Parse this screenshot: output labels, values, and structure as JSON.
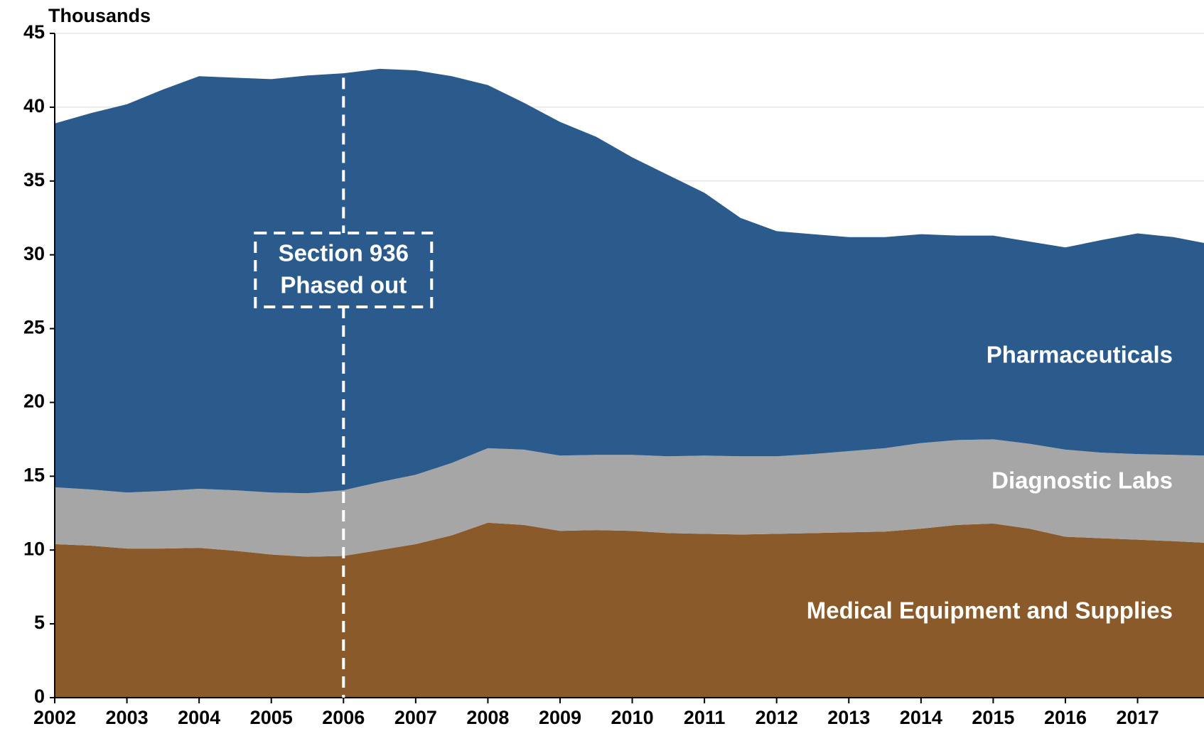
{
  "chart_data": {
    "type": "stacked-area",
    "y_axis_label": "Thousands",
    "x": [
      2002,
      2002.5,
      2003,
      2003.5,
      2004,
      2004.5,
      2005,
      2005.5,
      2006,
      2006.5,
      2007,
      2007.5,
      2008,
      2008.5,
      2009,
      2009.5,
      2010,
      2010.5,
      2011,
      2011.5,
      2012,
      2012.5,
      2013,
      2013.5,
      2014,
      2014.5,
      2015,
      2015.5,
      2016,
      2016.5,
      2017,
      2017.5,
      2017.92
    ],
    "series": [
      {
        "name": "Medical Equipment and Supplies",
        "color": "#8b5a2b",
        "values": [
          10.4,
          10.3,
          10.1,
          10.1,
          10.15,
          9.95,
          9.7,
          9.55,
          9.6,
          10.0,
          10.4,
          11.0,
          11.85,
          11.7,
          11.3,
          11.35,
          11.3,
          11.15,
          11.1,
          11.05,
          11.1,
          11.15,
          11.2,
          11.25,
          11.45,
          11.7,
          11.8,
          11.45,
          10.9,
          10.8,
          10.7,
          10.6,
          10.5
        ]
      },
      {
        "name": "Diagnostic Labs",
        "color": "#a6a6a6",
        "values": [
          3.85,
          3.8,
          3.8,
          3.9,
          4.0,
          4.1,
          4.2,
          4.3,
          4.45,
          4.6,
          4.7,
          4.9,
          5.05,
          5.1,
          5.1,
          5.1,
          5.15,
          5.2,
          5.3,
          5.3,
          5.25,
          5.35,
          5.5,
          5.65,
          5.8,
          5.75,
          5.7,
          5.75,
          5.9,
          5.8,
          5.8,
          5.85,
          5.9
        ]
      },
      {
        "name": "Pharmaceuticals",
        "color": "#2b5b8c",
        "values": [
          24.65,
          25.5,
          26.3,
          27.2,
          27.95,
          27.95,
          28.0,
          28.3,
          28.25,
          28.0,
          27.4,
          26.2,
          24.6,
          23.5,
          22.6,
          21.55,
          20.15,
          19.05,
          17.8,
          16.15,
          15.25,
          14.9,
          14.5,
          14.3,
          14.15,
          13.85,
          13.8,
          13.7,
          13.7,
          14.4,
          14.95,
          14.75,
          14.4
        ]
      }
    ],
    "xlim": [
      2002,
      2017.92
    ],
    "xticks": [
      2002,
      2003,
      2004,
      2005,
      2006,
      2007,
      2008,
      2009,
      2010,
      2011,
      2012,
      2013,
      2014,
      2015,
      2016,
      2017
    ],
    "ylim": [
      0,
      45
    ],
    "yticks": [
      0,
      5,
      10,
      15,
      20,
      25,
      30,
      35,
      40,
      45
    ],
    "grid": true,
    "annotation": {
      "text": [
        "Section 936",
        "Phased out"
      ],
      "x": 2006
    }
  }
}
